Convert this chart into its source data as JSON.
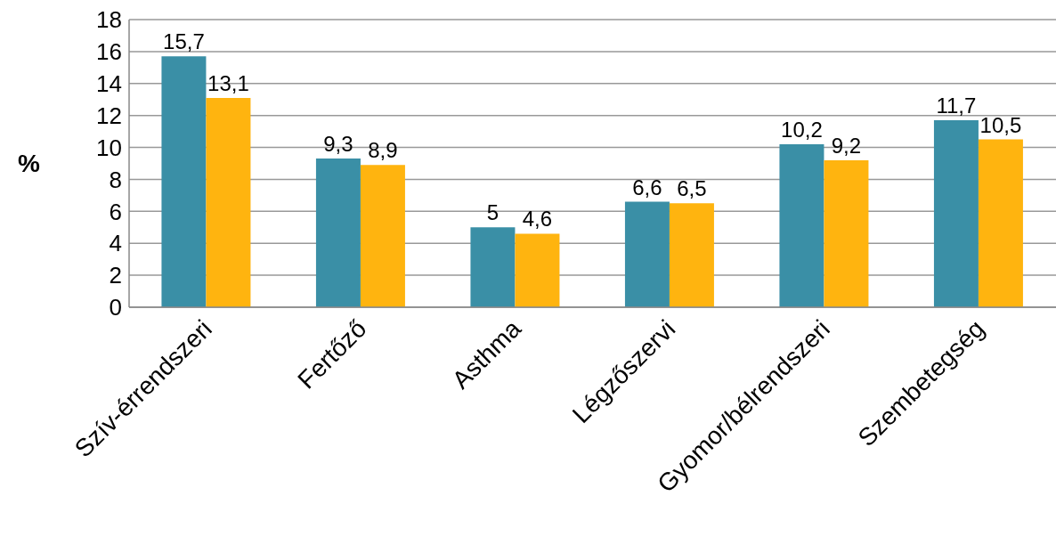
{
  "chart_data": {
    "type": "bar",
    "ylabel": "%",
    "categories": [
      "Szív-érrendszeri",
      "Fertőző",
      "Asthma",
      "Légzőszervi",
      "Gyomor/bélrendszeri",
      "Szembetegség"
    ],
    "series": [
      {
        "color": "#3a8fa6",
        "values": [
          15.7,
          9.3,
          5,
          6.6,
          10.2,
          11.7
        ],
        "value_labels": [
          "15,7",
          "9,3",
          "5",
          "6,6",
          "10,2",
          "11,7"
        ]
      },
      {
        "color": "#ffb40f",
        "values": [
          13.1,
          8.9,
          4.6,
          6.5,
          9.2,
          10.5
        ],
        "value_labels": [
          "13,1",
          "8,9",
          "4,6",
          "6,5",
          "9,2",
          "10,5"
        ]
      }
    ],
    "ylim": [
      0,
      18
    ],
    "yticks": [
      0,
      2,
      4,
      6,
      8,
      10,
      12,
      14,
      16,
      18
    ],
    "grid": "y",
    "legend": false
  }
}
